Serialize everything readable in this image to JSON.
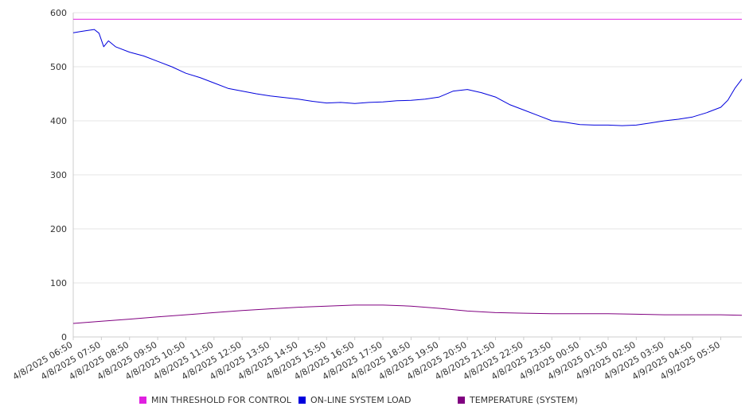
{
  "chart_data": {
    "type": "line",
    "ylim": [
      0,
      600
    ],
    "y_ticks": [
      "0",
      "100",
      "200",
      "300",
      "400",
      "500",
      "600"
    ],
    "grid": "horizontal",
    "legend_placement": "bottom",
    "x_tick_labels": [
      "4/8/2025 06:50",
      "4/8/2025 07:50",
      "4/8/2025 08:50",
      "4/8/2025 09:50",
      "4/8/2025 10:50",
      "4/8/2025 11:50",
      "4/8/2025 12:50",
      "4/8/2025 13:50",
      "4/8/2025 14:50",
      "4/8/2025 15:50",
      "4/8/2025 16:50",
      "4/8/2025 17:50",
      "4/8/2025 18:50",
      "4/8/2025 19:50",
      "4/8/2025 20:50",
      "4/8/2025 21:50",
      "4/8/2025 22:50",
      "4/8/2025 23:50",
      "4/9/2025 00:50",
      "4/9/2025 01:50",
      "4/9/2025 02:50",
      "4/9/2025 03:50",
      "4/9/2025 04:50",
      "4/9/2025 05:50"
    ],
    "x_range": [
      "4/8/2025 06:50",
      "4/9/2025 06:35"
    ],
    "series": [
      {
        "name": "MIN THRESHOLD FOR CONTROL",
        "color": "#e020e0",
        "x": [
          "4/8/2025 06:50",
          "4/9/2025 06:35"
        ],
        "values": [
          588,
          588
        ]
      },
      {
        "name": "ON-LINE SYSTEM LOAD",
        "color": "#0000dd",
        "x": [
          "4/8/2025 06:50",
          "4/8/2025 07:05",
          "4/8/2025 07:20",
          "4/8/2025 07:35",
          "4/8/2025 07:45",
          "4/8/2025 07:55",
          "4/8/2025 08:05",
          "4/8/2025 08:20",
          "4/8/2025 08:50",
          "4/8/2025 09:20",
          "4/8/2025 09:50",
          "4/8/2025 10:20",
          "4/8/2025 10:50",
          "4/8/2025 11:20",
          "4/8/2025 11:50",
          "4/8/2025 12:20",
          "4/8/2025 12:50",
          "4/8/2025 13:20",
          "4/8/2025 13:50",
          "4/8/2025 14:20",
          "4/8/2025 14:50",
          "4/8/2025 15:20",
          "4/8/2025 15:50",
          "4/8/2025 16:20",
          "4/8/2025 16:50",
          "4/8/2025 17:20",
          "4/8/2025 17:50",
          "4/8/2025 18:20",
          "4/8/2025 18:50",
          "4/8/2025 19:20",
          "4/8/2025 19:50",
          "4/8/2025 20:20",
          "4/8/2025 20:50",
          "4/8/2025 21:20",
          "4/8/2025 21:50",
          "4/8/2025 22:20",
          "4/8/2025 22:50",
          "4/8/2025 23:20",
          "4/8/2025 23:50",
          "4/9/2025 00:20",
          "4/9/2025 00:50",
          "4/9/2025 01:20",
          "4/9/2025 01:50",
          "4/9/2025 02:20",
          "4/9/2025 02:50",
          "4/9/2025 03:20",
          "4/9/2025 03:50",
          "4/9/2025 04:20",
          "4/9/2025 04:50",
          "4/9/2025 05:20",
          "4/9/2025 05:50",
          "4/9/2025 06:05",
          "4/9/2025 06:20",
          "4/9/2025 06:35"
        ],
        "values": [
          563,
          565,
          567,
          569,
          562,
          537,
          548,
          537,
          527,
          520,
          510,
          500,
          488,
          480,
          470,
          460,
          455,
          450,
          446,
          443,
          440,
          436,
          433,
          434,
          432,
          434,
          435,
          437,
          438,
          440,
          444,
          455,
          458,
          452,
          444,
          430,
          420,
          410,
          400,
          397,
          393,
          392,
          392,
          391,
          392,
          396,
          400,
          403,
          407,
          415,
          425,
          438,
          460,
          477
        ]
      },
      {
        "name": "TEMPERATURE (SYSTEM)",
        "color": "#800080",
        "x": [
          "4/8/2025 06:50",
          "4/8/2025 07:50",
          "4/8/2025 08:50",
          "4/8/2025 09:50",
          "4/8/2025 10:50",
          "4/8/2025 11:50",
          "4/8/2025 12:50",
          "4/8/2025 13:50",
          "4/8/2025 14:50",
          "4/8/2025 15:50",
          "4/8/2025 16:50",
          "4/8/2025 17:50",
          "4/8/2025 18:50",
          "4/8/2025 19:50",
          "4/8/2025 20:50",
          "4/8/2025 21:50",
          "4/8/2025 22:50",
          "4/8/2025 23:50",
          "4/9/2025 00:50",
          "4/9/2025 01:50",
          "4/9/2025 02:50",
          "4/9/2025 03:50",
          "4/9/2025 04:50",
          "4/9/2025 05:50",
          "4/9/2025 06:35"
        ],
        "values": [
          25,
          29,
          33,
          37,
          41,
          45,
          49,
          52,
          55,
          57,
          59,
          59,
          57,
          53,
          48,
          45,
          44,
          43,
          43,
          43,
          42,
          41,
          41,
          41,
          40
        ]
      }
    ]
  }
}
